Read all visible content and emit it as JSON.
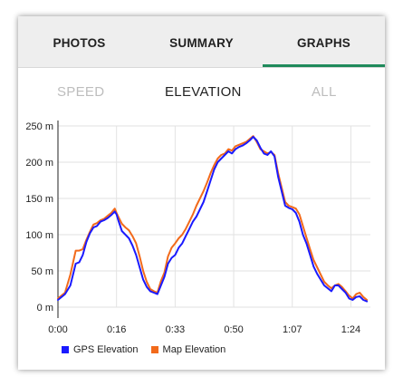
{
  "tabs": [
    {
      "label": "PHOTOS",
      "active": false
    },
    {
      "label": "SUMMARY",
      "active": false
    },
    {
      "label": "GRAPHS",
      "active": true
    }
  ],
  "subtabs": [
    {
      "label": "SPEED",
      "active": false
    },
    {
      "label": "ELEVATION",
      "active": true
    },
    {
      "label": "ALL",
      "active": false
    }
  ],
  "colors": {
    "accent": "#1f8a5b",
    "gps": "#1a1aff",
    "map": "#f26a1b"
  },
  "chart_data": {
    "type": "line",
    "title": "",
    "xlabel": "",
    "ylabel": "",
    "xlim": [
      0,
      88
    ],
    "ylim": [
      0,
      250
    ],
    "x_tick_labels": [
      "0:00",
      "0:16",
      "0:33",
      "0:50",
      "1:07",
      "1:24"
    ],
    "x_tick_values": [
      0,
      16.5,
      33,
      49.5,
      66,
      82.5
    ],
    "y_tick_labels": [
      "0 m",
      "50 m",
      "100 m",
      "150 m",
      "200 m",
      "250 m"
    ],
    "y_tick_values": [
      0,
      50,
      100,
      150,
      200,
      250
    ],
    "grid": true,
    "legend_position": "bottom-left",
    "series": [
      {
        "name": "GPS Elevation",
        "color": "#1a1aff",
        "x": [
          0,
          2,
          3.5,
          5,
          6,
          7,
          8,
          9,
          10,
          11,
          12,
          13,
          14,
          15,
          16,
          16.5,
          17,
          18,
          19,
          20,
          21,
          22,
          23,
          24,
          25,
          26,
          27,
          28,
          29,
          30,
          31,
          32,
          33,
          34,
          35,
          36,
          37,
          38,
          39,
          40,
          41,
          42,
          43,
          44,
          45,
          46,
          47,
          48,
          49,
          50,
          51,
          52,
          53,
          54,
          55,
          56,
          57,
          58,
          59,
          60,
          61,
          62,
          63,
          64,
          65,
          66,
          67,
          68,
          69,
          70,
          71,
          72,
          73,
          74,
          75,
          76,
          77,
          78,
          79,
          80,
          81,
          82,
          83,
          84,
          85,
          86,
          87
        ],
        "y": [
          10,
          18,
          30,
          60,
          62,
          72,
          90,
          102,
          110,
          112,
          118,
          120,
          123,
          127,
          132,
          128,
          120,
          105,
          100,
          95,
          85,
          72,
          55,
          38,
          28,
          22,
          20,
          18,
          30,
          42,
          60,
          68,
          72,
          82,
          88,
          98,
          108,
          118,
          125,
          135,
          145,
          160,
          175,
          190,
          200,
          205,
          210,
          215,
          212,
          218,
          221,
          223,
          226,
          230,
          235,
          230,
          220,
          212,
          210,
          215,
          208,
          180,
          160,
          140,
          137,
          135,
          130,
          118,
          100,
          88,
          72,
          56,
          46,
          38,
          30,
          26,
          22,
          30,
          30,
          25,
          20,
          12,
          10,
          14,
          15,
          10,
          8
        ]
      },
      {
        "name": "Map Elevation",
        "color": "#f26a1b",
        "x": [
          0,
          2,
          3.5,
          5,
          6,
          7,
          8,
          9,
          10,
          11,
          12,
          13,
          14,
          15,
          16,
          16.5,
          17,
          18,
          19,
          20,
          21,
          22,
          23,
          24,
          25,
          26,
          27,
          28,
          29,
          30,
          31,
          32,
          33,
          34,
          35,
          36,
          37,
          38,
          39,
          40,
          41,
          42,
          43,
          44,
          45,
          46,
          47,
          48,
          49,
          50,
          51,
          52,
          53,
          54,
          55,
          56,
          57,
          58,
          59,
          60,
          61,
          62,
          63,
          64,
          65,
          66,
          67,
          68,
          69,
          70,
          71,
          72,
          73,
          74,
          75,
          76,
          77,
          78,
          79,
          80,
          81,
          82,
          83,
          84,
          85,
          86,
          87
        ],
        "y": [
          12,
          20,
          45,
          78,
          78,
          80,
          93,
          104,
          114,
          116,
          120,
          122,
          126,
          130,
          136,
          130,
          125,
          115,
          110,
          106,
          98,
          88,
          70,
          50,
          35,
          25,
          22,
          20,
          36,
          48,
          70,
          82,
          88,
          95,
          100,
          108,
          118,
          128,
          140,
          150,
          160,
          172,
          185,
          196,
          205,
          210,
          212,
          218,
          216,
          222,
          224,
          226,
          228,
          232,
          236,
          228,
          218,
          215,
          212,
          214,
          210,
          185,
          165,
          145,
          140,
          138,
          136,
          128,
          112,
          96,
          80,
          65,
          55,
          45,
          35,
          30,
          26,
          30,
          32,
          28,
          22,
          16,
          12,
          18,
          20,
          14,
          10
        ]
      }
    ]
  }
}
